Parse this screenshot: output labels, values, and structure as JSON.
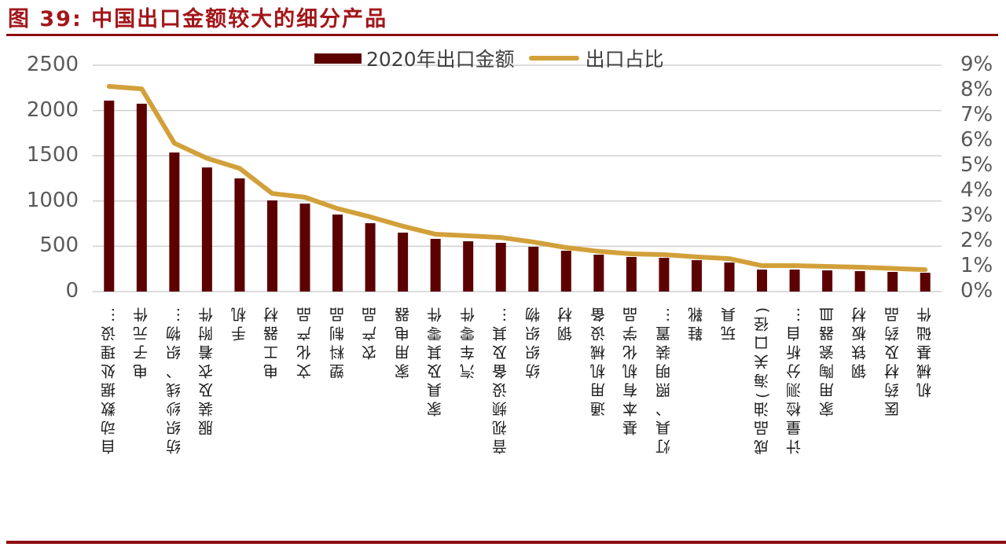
{
  "title": "图 39:  中国出口金额较大的细分产品",
  "legend": {
    "bar_label": "2020年出口金额",
    "line_label": "出口占比"
  },
  "colors": {
    "bar": "#5c0000",
    "line": "#d2a03a",
    "title": "#a3161a",
    "grid": "#d0d0d0"
  },
  "chart_data": {
    "type": "bar+line",
    "title": "中国出口金额较大的细分产品",
    "categories": [
      "自动数据处理设…",
      "电子元件",
      "纺织纱线、织物…",
      "服装及衣着附件",
      "手机",
      "电工器材",
      "文化产品",
      "塑料制品",
      "农产品",
      "家用电器",
      "家具及其零件",
      "汽车零件",
      "音视频设备及其…",
      "纺织织物",
      "钢材",
      "通用机械设备",
      "基本有机化学品",
      "灯具、照明装置…",
      "鞋靴",
      "玩具",
      "成品油(海关口径)",
      "计量检测分析自…",
      "家用陶瓷器皿",
      "钢铁板材",
      "医药材及药品",
      "机械基础件"
    ],
    "series": [
      {
        "name": "2020年出口金额",
        "type": "bar",
        "axis": "left",
        "values": [
          2109,
          2075,
          1536,
          1371,
          1250,
          1007,
          972,
          851,
          755,
          651,
          582,
          556,
          538,
          495,
          451,
          408,
          382,
          373,
          347,
          321,
          243,
          243,
          234,
          226,
          217,
          208
        ]
      },
      {
        "name": "出口占比",
        "type": "line",
        "axis": "right",
        "values": [
          8.16,
          8.06,
          5.9,
          5.3,
          4.9,
          3.9,
          3.75,
          3.3,
          2.97,
          2.6,
          2.28,
          2.22,
          2.15,
          1.97,
          1.75,
          1.6,
          1.5,
          1.47,
          1.38,
          1.31,
          1.03,
          1.03,
          1.0,
          0.97,
          0.92,
          0.87
        ]
      }
    ],
    "y_left": {
      "ylim": [
        0,
        2500
      ],
      "ticks": [
        "0",
        "500",
        "1000",
        "1500",
        "2000",
        "2500"
      ]
    },
    "y_right": {
      "ylim": [
        0,
        9
      ],
      "unit": "%",
      "ticks": [
        "0%",
        "1%",
        "2%",
        "3%",
        "4%",
        "5%",
        "6%",
        "7%",
        "8%",
        "9%"
      ]
    },
    "xlabel": "",
    "ylabel": "",
    "grid": true,
    "legend_position": "top"
  }
}
